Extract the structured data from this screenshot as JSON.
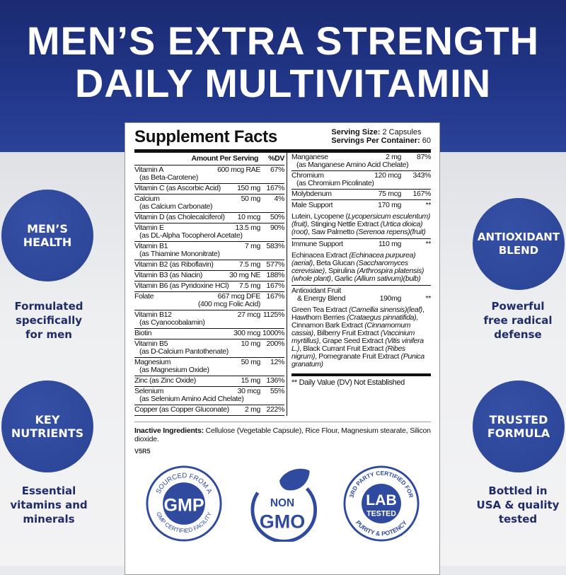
{
  "headline": {
    "line1": "MEN’S EXTRA STRENGTH",
    "line2": "DAILY MULTIVITAMIN"
  },
  "features_left": [
    {
      "badge": [
        "MEN’S",
        "HEALTH"
      ],
      "caption": [
        "Formulated",
        "specifically",
        "for men"
      ]
    },
    {
      "badge": [
        "KEY",
        "NUTRIENTS"
      ],
      "caption": [
        "Essential",
        "vitamins and",
        "minerals"
      ]
    }
  ],
  "features_right": [
    {
      "badge": [
        "ANTIOXIDANT",
        "BLEND"
      ],
      "caption": [
        "Powerful",
        "free radical",
        "defense"
      ]
    },
    {
      "badge": [
        "TRUSTED",
        "FORMULA"
      ],
      "caption": [
        "Bottled in",
        "USA & quality",
        "tested"
      ]
    }
  ],
  "facts": {
    "title": "Supplement Facts",
    "serving_size_label": "Serving Size:",
    "serving_size": "2 Capsules",
    "servings_label": "Servings Per Container:",
    "servings": "60",
    "amount_header": "Amount Per Serving",
    "dv_header": "%DV",
    "left_rows": [
      {
        "name": "Vitamin A",
        "sub": "(as Beta-Carotene)",
        "amount": "600 mcg RAE",
        "dv": "67%"
      },
      {
        "name": "Vitamin C (as Ascorbic Acid)",
        "sub": "",
        "amount": "150 mg",
        "dv": "167%"
      },
      {
        "name": "Calcium",
        "sub": "(as Calcium Carbonate)",
        "amount": "50 mg",
        "dv": "4%"
      },
      {
        "name": "Vitamin D (as Cholecalciferol)",
        "sub": "",
        "amount": "10 mcg",
        "dv": "50%"
      },
      {
        "name": "Vitamin E",
        "sub": "(as DL-Alpha Tocopherol Acetate)",
        "amount": "13.5 mg",
        "dv": "90%"
      },
      {
        "name": "Vitamin B1",
        "sub": "(as Thiamine Mononitrate)",
        "amount": "7 mg",
        "dv": "583%"
      },
      {
        "name": "Vitamin B2 (as Riboflavin)",
        "sub": "",
        "amount": "7.5 mg",
        "dv": "577%"
      },
      {
        "name": "Vitamin B3 (as Niacin)",
        "sub": "",
        "amount": "30 mg NE",
        "dv": "188%"
      },
      {
        "name": "Vitamin B6 (as Pyridoxine HCl)",
        "sub": "",
        "amount": "7.5 mg",
        "dv": "167%"
      },
      {
        "name": "Folate",
        "sub": "",
        "amount": "667 mcg DFE",
        "amount2": "(400 mcg Folic Acid)",
        "dv": "167%"
      },
      {
        "name": "Vitamin B12",
        "sub": "(as Cyanocobalamin)",
        "amount": "27 mcg",
        "dv": "1125%"
      },
      {
        "name": "Biotin",
        "sub": "",
        "amount": "300 mcg",
        "dv": "1000%"
      },
      {
        "name": "Vitamin B5",
        "sub": "(as D-Calcium Pantothenate)",
        "amount": "10 mg",
        "dv": "200%"
      },
      {
        "name": "Magnesium",
        "sub": "(as Magnesium Oxide)",
        "amount": "50 mg",
        "dv": "12%"
      },
      {
        "name": "Zinc (as Zinc Oxide)",
        "sub": "",
        "amount": "15 mg",
        "dv": "136%"
      },
      {
        "name": "Selenium",
        "sub": "(as Selenium Amino Acid Chelate)",
        "amount": "30 mcg",
        "dv": "55%"
      },
      {
        "name": "Copper (as Copper Gluconate)",
        "sub": "",
        "amount": "2 mg",
        "dv": "222%"
      }
    ],
    "right_rows": [
      {
        "name": "Manganese",
        "sub": "(as Manganese Amino Acid Chelate)",
        "amount": "2 mg",
        "dv": "87%"
      },
      {
        "name": "Chromium",
        "sub": "(as Chromium Picolinate)",
        "amount": "120 mcg",
        "dv": "343%"
      },
      {
        "name": "Molybdenum",
        "sub": "",
        "amount": "75 mcg",
        "dv": "167%"
      }
    ],
    "blends": [
      {
        "name": "Male Support",
        "amount": "170 mg",
        "dv": "**",
        "ingredients": [
          [
            "Lutein, Lycopene (",
            false
          ],
          [
            "Lycopersicum esculentum)(fruit)",
            true
          ],
          [
            ", Stinging Nettle Extract ",
            false
          ],
          [
            "(Urtica dioica)(root)",
            true
          ],
          [
            ", Saw Palmetto ",
            false
          ],
          [
            "(Serenoa repens)(fruit)",
            true
          ]
        ]
      },
      {
        "name": "Immune Support",
        "amount": "110 mg",
        "dv": "**",
        "ingredients": [
          [
            "Echinacea Extract ",
            false
          ],
          [
            "(Echinacea purpurea)(aerial)",
            true
          ],
          [
            ", Beta Glucan ",
            false
          ],
          [
            "(Saccharomyces cerevisiae)",
            true
          ],
          [
            ", Spirulina ",
            false
          ],
          [
            "(Arthrospira platensis)(whole plant)",
            true
          ],
          [
            ", Garlic ",
            false
          ],
          [
            "(Allium sativum)(bulb)",
            true
          ]
        ]
      },
      {
        "name": "Antioxidant Fruit",
        "name2": "& Energy Blend",
        "amount": "190mg",
        "dv": "**",
        "ingredients": [
          [
            "Green Tea Extract ",
            false
          ],
          [
            "(Camellia sinensis)(leaf)",
            true
          ],
          [
            ", Hawthorn Berries ",
            false
          ],
          [
            "(Crataegus pinnatifida)",
            true
          ],
          [
            ", Cinnamon Bark Extract ",
            false
          ],
          [
            "(Cinnamomum cassia)",
            true
          ],
          [
            ", Bilberry Fruit Extract ",
            false
          ],
          [
            "(Vaccinium myrtillus)",
            true
          ],
          [
            ", Grape Seed Extract ",
            false
          ],
          [
            "(Vitis vinifera L.)",
            true
          ],
          [
            ", Black Currant Fruit Extract ",
            false
          ],
          [
            "(Ribes nigrum)",
            true
          ],
          [
            ", Pomegranate Fruit Extract ",
            false
          ],
          [
            "(Punica granatum)",
            true
          ]
        ]
      }
    ],
    "footnote": "** Daily Value (DV) Not Established",
    "inactive_label": "Inactive Ingredients:",
    "inactive_text": " Cellulose (Vegetable Capsule), Rice Flour, Magnesium stearate, Silicon dioxide.",
    "code": "V5R5"
  },
  "badges": {
    "gmp": {
      "center": "GMP",
      "top": "SOURCED FROM A",
      "bottom": "GMP CERTIFIED FACILITY"
    },
    "nongmo": {
      "line1": "NON",
      "line2": "GMO"
    },
    "lab": {
      "line1": "LAB",
      "line2": "TESTED",
      "top": "3RD PARTY CERTIFIED FOR",
      "bottom": "PURITY & POTENCY"
    }
  },
  "colors": {
    "navy": "#1b2a72",
    "badge_blue": "#2f4a9e",
    "caption": "#1f2c68"
  }
}
